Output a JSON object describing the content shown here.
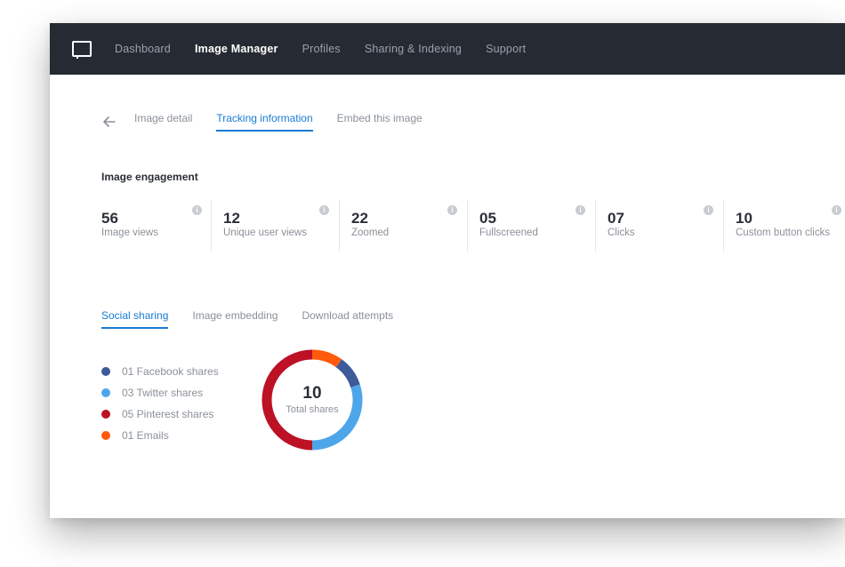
{
  "nav": {
    "items": [
      {
        "label": "Dashboard",
        "active": false
      },
      {
        "label": "Image Manager",
        "active": true
      },
      {
        "label": "Profiles",
        "active": false
      },
      {
        "label": "Sharing & Indexing",
        "active": false
      },
      {
        "label": "Support",
        "active": false
      }
    ]
  },
  "subnav": {
    "tabs": [
      {
        "label": "Image detail",
        "active": false
      },
      {
        "label": "Tracking information",
        "active": true
      },
      {
        "label": "Embed this image",
        "active": false
      }
    ]
  },
  "engagement": {
    "title": "Image engagement",
    "stats": [
      {
        "value": "56",
        "label": "Image views"
      },
      {
        "value": "12",
        "label": "Unique user views"
      },
      {
        "value": "22",
        "label": "Zoomed"
      },
      {
        "value": "05",
        "label": "Fullscreened"
      },
      {
        "value": "07",
        "label": "Clicks"
      },
      {
        "value": "10",
        "label": "Custom button clicks"
      }
    ]
  },
  "sharing_tabs": [
    {
      "label": "Social sharing",
      "active": true
    },
    {
      "label": "Image embedding",
      "active": false
    },
    {
      "label": "Download attempts",
      "active": false
    }
  ],
  "legend": [
    {
      "label": "01 Facebook shares",
      "color": "#3d5a99"
    },
    {
      "label": "03 Twitter shares",
      "color": "#4ea6ea"
    },
    {
      "label": "05 Pinterest shares",
      "color": "#bd1126"
    },
    {
      "label": "01 Emails",
      "color": "#ff5b0a"
    }
  ],
  "donut": {
    "total": "10",
    "label": "Total shares"
  },
  "chart_data": {
    "type": "pie",
    "categories": [
      "Facebook shares",
      "Twitter shares",
      "Pinterest shares",
      "Emails"
    ],
    "values": [
      1,
      3,
      5,
      1
    ],
    "colors": [
      "#3d5a99",
      "#4ea6ea",
      "#bd1126",
      "#ff5b0a"
    ]
  },
  "colors": {
    "topbar": "#262b33",
    "accent": "#1a7bd4"
  }
}
